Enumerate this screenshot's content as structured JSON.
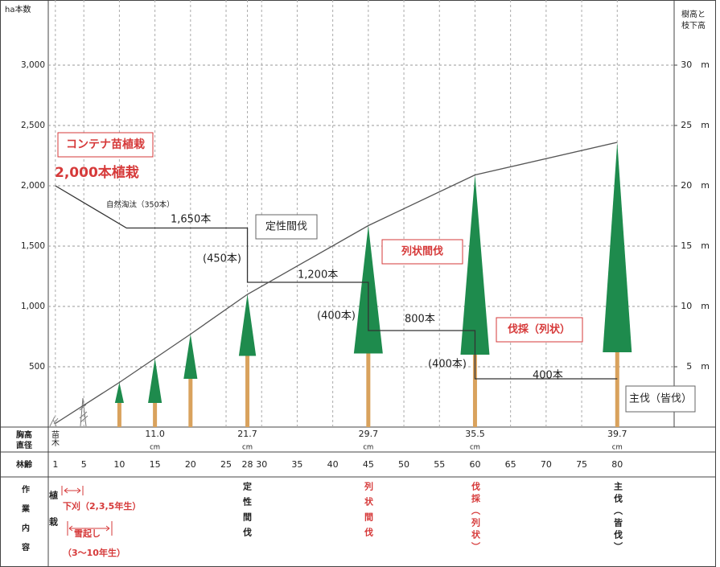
{
  "chart_data": {
    "type": "line",
    "ylabel": "ha本数",
    "y2label": [
      "樹高と",
      "枝下高"
    ],
    "xlabel": "林齢",
    "xlim": [
      0,
      88
    ],
    "xticks": [
      1,
      5,
      10,
      15,
      20,
      25,
      28,
      30,
      35,
      40,
      45,
      50,
      55,
      60,
      65,
      70,
      75,
      80
    ],
    "ylim": [
      0,
      3500
    ],
    "yticks": [
      500,
      {
        "value": 1000,
        "label": "1,000"
      },
      {
        "value": 1500,
        "label": "1,500"
      },
      {
        "value": 2000,
        "label": "2,000"
      },
      {
        "value": 2500,
        "label": "2,500"
      },
      {
        "value": 3000,
        "label": "3,000"
      }
    ],
    "y2lim": [
      0,
      35
    ],
    "y2ticks": [
      {
        "value": 5,
        "label": "5　m"
      },
      {
        "value": 10,
        "label": "10　m"
      },
      {
        "value": 15,
        "label": "15　m"
      },
      {
        "value": 20,
        "label": "20　m"
      },
      {
        "value": 25,
        "label": "25　m"
      },
      {
        "value": 30,
        "label": "30　m"
      }
    ],
    "grid": true,
    "series": [
      {
        "color": "#333333",
        "x": [
          1,
          11,
          28,
          28,
          45,
          45,
          60,
          60,
          80
        ],
        "values": [
          2000,
          1650,
          1650,
          1200,
          1200,
          800,
          800,
          400,
          400
        ]
      },
      {
        "color": "#555555",
        "axis": "y2",
        "x": [
          1,
          10,
          15,
          20,
          28,
          45,
          60,
          80
        ],
        "values": [
          0.3,
          3.7,
          5.7,
          7.7,
          11,
          16.7,
          20.9,
          23.6
        ]
      }
    ],
    "trees": {
      "x": [
        10,
        15,
        20,
        28,
        45,
        60,
        80
      ],
      "height": [
        3.7,
        5.7,
        7.7,
        11,
        16.7,
        20.9,
        23.6
      ],
      "crown_base": [
        2,
        2,
        4,
        5.9,
        6.1,
        6,
        6.2
      ],
      "crown_color": "#1e8b4d",
      "trunk_color": "#d9a25d"
    },
    "annotations": [
      "コンテナ苗植栽",
      "2,000本植栽",
      "自然淘汰（350本）",
      "1,650本",
      "定性間伐",
      "(450本)",
      "1,200本",
      "列状間伐",
      "(400本)",
      "800本",
      "伐採（列状）",
      "(400本)",
      "400本",
      "主伐（皆伐）"
    ],
    "dbh": {
      "label": [
        "胸高",
        "直径"
      ],
      "seedling": "苗木",
      "x": [
        15,
        28,
        45,
        60,
        80
      ],
      "values": [
        11.0,
        21.7,
        29.7,
        35.5,
        39.7
      ],
      "value_labels": [
        "11.0",
        "21.7",
        "29.7",
        "35.5",
        "39.7"
      ],
      "unit": "cm"
    },
    "work": {
      "label": "作業内容",
      "planting": "植栽",
      "weeding": "下刈（2,3,5年生）",
      "snow": "雪起し",
      "snow_years": "（3～10年生）",
      "thinning1": "定性間伐",
      "thinning2": "列状間伐",
      "cutting": "伐採（列状）",
      "final": "主伐（皆伐）"
    }
  }
}
